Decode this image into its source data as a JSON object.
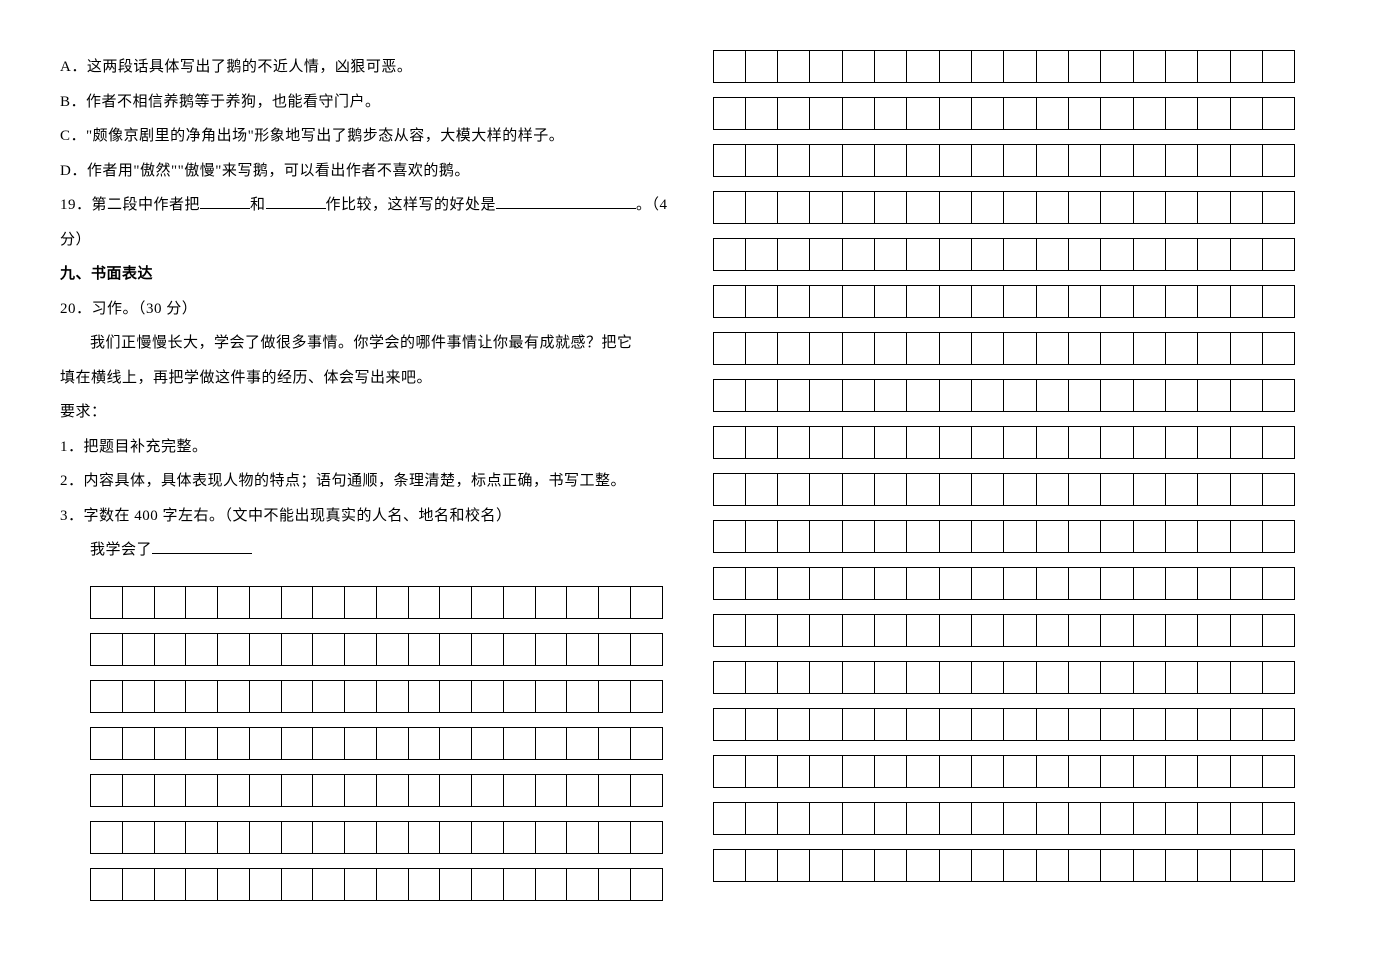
{
  "options": {
    "A": "A．这两段话具体写出了鹅的不近人情，凶狠可恶。",
    "B": "B．作者不相信养鹅等于养狗，也能看守门户。",
    "C": "C．\"颇像京剧里的净角出场\"形象地写出了鹅步态从容，大模大样的样子。",
    "D": "D．作者用\"傲然\"\"傲慢\"来写鹅，可以看出作者不喜欢的鹅。"
  },
  "q19": {
    "prefix": "19．第二段中作者把",
    "mid1": "和",
    "mid2": "作比较，这样写的好处是",
    "suffix": "。（4",
    "line2": "分）"
  },
  "section9": "九、书面表达",
  "q20": {
    "title": "20．习作。（30 分）",
    "intro1": "我们正慢慢长大，学会了做很多事情。你学会的哪件事情让你最有成就感？把它",
    "intro2": "填在横线上，再把学做这件事的经历、体会写出来吧。",
    "reqLabel": "要求：",
    "req1": "1．把题目补充完整。",
    "req2": "2．内容具体，具体表现人物的特点；语句通顺，条理清楚，标点正确，书写工整。",
    "req3": "3．字数在 400 字左右。（文中不能出现真实的人名、地名和校名）",
    "essayTitle": "我学会了"
  },
  "grid": {
    "leftRows": 7,
    "rightRows": 18,
    "cellsPerRow": 18
  },
  "style": {
    "background": "#ffffff",
    "textColor": "#000000"
  }
}
